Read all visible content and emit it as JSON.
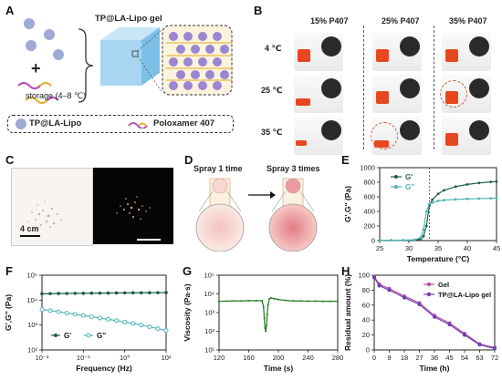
{
  "panels": {
    "A": {
      "letter": "A",
      "gel_title": "TP@LA-Lipo gel",
      "storage": "storage (4–8 ℃)",
      "legend_lipo": "TP@LA-Lipo",
      "legend_polox": "Poloxamer 407"
    },
    "B": {
      "letter": "B",
      "columns": [
        "15% P407",
        "25% P407",
        "35% P407"
      ],
      "rows": [
        "4 ℃",
        "25 ℃",
        "35 ℃"
      ]
    },
    "C": {
      "letter": "C",
      "scale": "4 cm"
    },
    "D": {
      "letter": "D",
      "left": "Spray 1 time",
      "right": "Spray 3 times"
    },
    "E": {
      "letter": "E"
    },
    "F": {
      "letter": "F"
    },
    "G": {
      "letter": "G"
    },
    "H": {
      "letter": "H"
    }
  },
  "chart_data": [
    {
      "panel": "E",
      "type": "line",
      "xlabel": "Temperature (°C)",
      "ylabel": "G',G'' (Pa)",
      "xlim": [
        25,
        45
      ],
      "ylim": [
        0,
        1000
      ],
      "xticks": [
        25,
        30,
        35,
        40,
        45
      ],
      "yticks": [
        0,
        200,
        400,
        600,
        800,
        1000
      ],
      "legend": "top-left",
      "annotation_x": 33.5,
      "series": [
        {
          "name": "G'",
          "color": "#1f5f3f",
          "x": [
            25,
            27,
            29,
            31,
            32,
            32.5,
            33,
            33.5,
            34,
            35,
            36,
            38,
            40,
            42,
            44,
            45
          ],
          "y": [
            5,
            5,
            5,
            8,
            20,
            60,
            200,
            480,
            560,
            640,
            690,
            740,
            770,
            790,
            805,
            810
          ]
        },
        {
          "name": "G''",
          "color": "#4fb3b8",
          "x": [
            25,
            27,
            29,
            31,
            32,
            32.5,
            33,
            33.5,
            34,
            35,
            36,
            38,
            40,
            42,
            44,
            45
          ],
          "y": [
            5,
            5,
            5,
            10,
            40,
            150,
            400,
            500,
            520,
            545,
            555,
            565,
            572,
            576,
            580,
            582
          ]
        }
      ]
    },
    {
      "panel": "F",
      "type": "line",
      "xlabel": "Frequency (Hz)",
      "ylabel": "G',G'' (Pa)",
      "xscale": "log",
      "yscale": "log",
      "xlim": [
        0.01,
        10
      ],
      "ylim": [
        100,
        100000
      ],
      "xtick_labels": [
        "10⁻²",
        "10⁻¹",
        "10⁰",
        "10¹"
      ],
      "ytick_labels": [
        "10²",
        "10³",
        "10⁴",
        "10⁵"
      ],
      "legend": "bottom-left",
      "series": [
        {
          "name": "G'",
          "color": "#1f5f3f",
          "x": [
            0.01,
            0.0158,
            0.0251,
            0.0398,
            0.0631,
            0.1,
            0.158,
            0.251,
            0.398,
            0.631,
            1,
            1.58,
            2.51,
            3.98,
            6.31,
            10
          ],
          "y": [
            18000,
            18200,
            18400,
            18500,
            18700,
            18800,
            19000,
            19100,
            19200,
            19400,
            19500,
            19600,
            19700,
            19800,
            19900,
            20000
          ]
        },
        {
          "name": "G''",
          "color": "#4fb3b8",
          "x": [
            0.01,
            0.0158,
            0.0251,
            0.0398,
            0.0631,
            0.1,
            0.158,
            0.251,
            0.398,
            0.631,
            1,
            1.58,
            2.51,
            3.98,
            6.31,
            10
          ],
          "y": [
            4200,
            3800,
            3400,
            3000,
            2700,
            2400,
            2150,
            1900,
            1700,
            1500,
            1300,
            1150,
            1000,
            850,
            720,
            600
          ]
        }
      ]
    },
    {
      "panel": "G",
      "type": "line",
      "xlabel": "Time (s)",
      "ylabel": "Viscosity (Pa·s)",
      "yscale": "log",
      "xlim": [
        120,
        280
      ],
      "ylim": [
        10,
        100000
      ],
      "xticks": [
        120,
        160,
        200,
        240,
        280
      ],
      "ytick_labels": [
        "10¹",
        "10²",
        "10³",
        "10⁴",
        "10⁵"
      ],
      "series": [
        {
          "name": "",
          "color": "#1f7a1f",
          "x": [
            120,
            130,
            140,
            150,
            160,
            170,
            178,
            180,
            181,
            182,
            183,
            184,
            185,
            186,
            188,
            190,
            195,
            200,
            210,
            220,
            230,
            240,
            250,
            260,
            270,
            280
          ],
          "y": [
            4000,
            4100,
            4200,
            4200,
            4300,
            4300,
            4300,
            2000,
            500,
            150,
            100,
            200,
            800,
            2500,
            5500,
            6000,
            5500,
            5000,
            4500,
            4200,
            4200,
            4100,
            4100,
            4000,
            4000,
            4000
          ]
        }
      ]
    },
    {
      "panel": "H",
      "type": "line",
      "xlabel": "Time (h)",
      "ylabel": "Residual amount (%)",
      "xlim": [
        0,
        72
      ],
      "ylim": [
        0,
        100
      ],
      "xticks": [
        0,
        9,
        18,
        27,
        36,
        45,
        54,
        63,
        72
      ],
      "yticks": [
        0,
        20,
        40,
        60,
        80,
        100
      ],
      "legend": "top-right",
      "series": [
        {
          "name": "Gel",
          "color": "#c04ca6",
          "x": [
            0,
            3,
            9,
            18,
            27,
            36,
            45,
            54,
            63,
            72
          ],
          "y": [
            98,
            88,
            82,
            72,
            63,
            46,
            36,
            22,
            8,
            3
          ]
        },
        {
          "name": "TP@LA-Lipo gel",
          "color": "#6a3fb0",
          "x": [
            0,
            3,
            9,
            18,
            27,
            36,
            45,
            54,
            63,
            72
          ],
          "y": [
            97,
            86,
            80,
            70,
            61,
            44,
            34,
            20,
            7,
            2
          ]
        }
      ]
    }
  ]
}
